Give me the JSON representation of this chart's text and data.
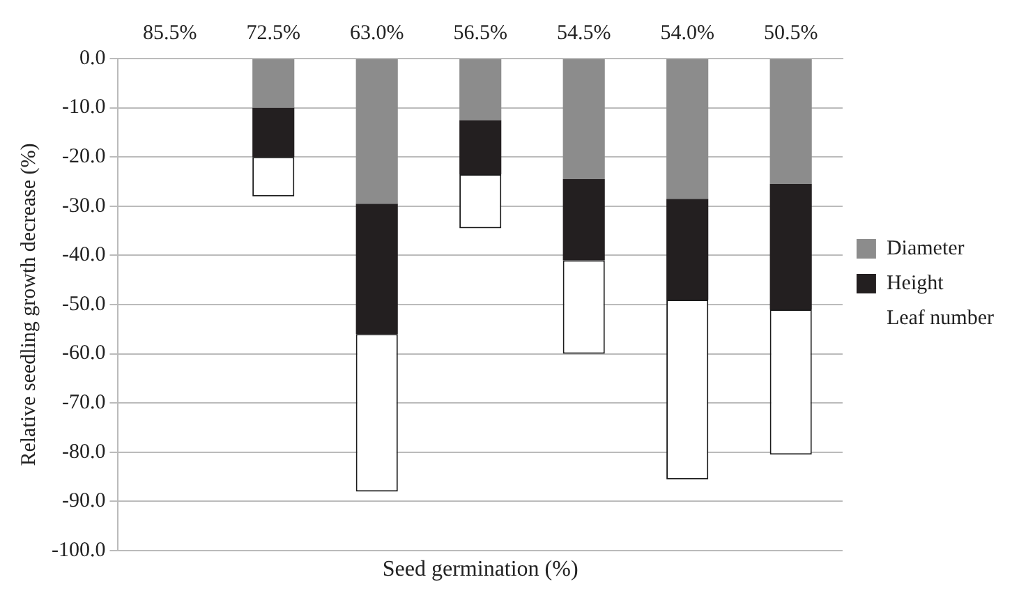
{
  "chart_data": {
    "type": "bar",
    "stacked": true,
    "xlabel": "Seed germination (%)",
    "ylabel": "Relative seedling growth decrease (%)",
    "categories": [
      "85.5%",
      "72.5%",
      "63.0%",
      "56.5%",
      "54.5%",
      "54.0%",
      "50.5%"
    ],
    "series": [
      {
        "name": "Diameter",
        "color": "#8c8c8c",
        "values": [
          null,
          -10,
          -29.5,
          -12.5,
          -24.5,
          -28.5,
          -25.5
        ]
      },
      {
        "name": "Height",
        "color": "#231f20",
        "values": [
          null,
          -10,
          -26.5,
          -11,
          -16.5,
          -20.5,
          -25.5
        ]
      },
      {
        "name": "Leaf number",
        "color": "#ffffff",
        "values": [
          null,
          -8,
          -32,
          -11,
          -19,
          -36.5,
          -29.5
        ]
      }
    ],
    "ylim": [
      -100,
      0
    ],
    "yticks": [
      {
        "value": 0,
        "label": "0.0"
      },
      {
        "value": -10,
        "label": "-10.0"
      },
      {
        "value": -20,
        "label": "-20.0"
      },
      {
        "value": -30,
        "label": "-30.0"
      },
      {
        "value": -40,
        "label": "-40.0"
      },
      {
        "value": -50,
        "label": "-50.0"
      },
      {
        "value": -60,
        "label": "-60.0"
      },
      {
        "value": -70,
        "label": "-70.0"
      },
      {
        "value": -80,
        "label": "-80.0"
      },
      {
        "value": -90,
        "label": "-90.0"
      },
      {
        "value": -100,
        "label": "-100.0"
      }
    ],
    "grid": "y",
    "legend": "right"
  }
}
